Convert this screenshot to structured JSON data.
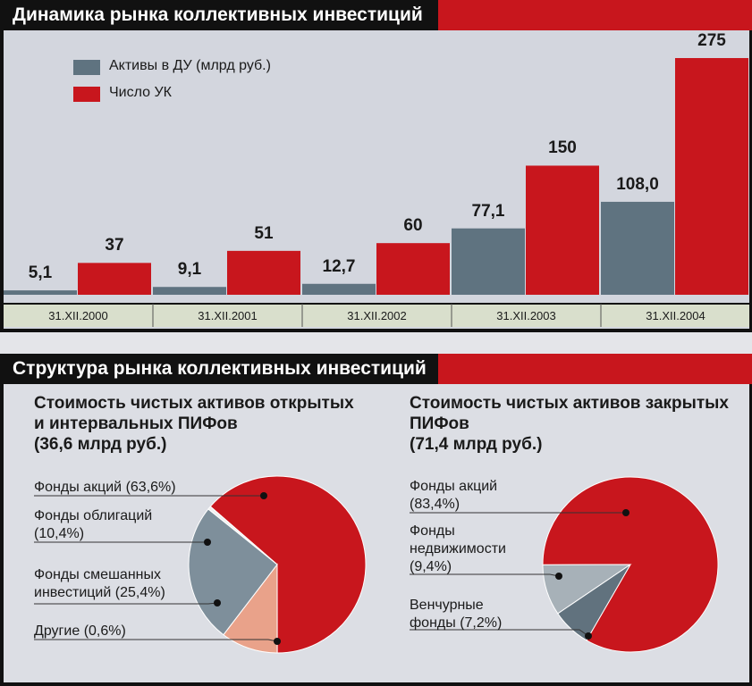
{
  "chart_data": [
    {
      "type": "bar",
      "title": "Динамика рынка коллективных инвестиций",
      "categories": [
        "31.XII.2000",
        "31.XII.2001",
        "31.XII.2002",
        "31.XII.2003",
        "31.XII.2004"
      ],
      "series": [
        {
          "name": "Активы в ДУ (млрд руб.)",
          "color": "#5f7380",
          "values": [
            5.1,
            9.1,
            12.7,
            77.1,
            108.0
          ],
          "value_labels": [
            "5,1",
            "9,1",
            "12,7",
            "77,1",
            "108,0"
          ]
        },
        {
          "name": "Число УК",
          "color": "#c8161d",
          "values": [
            37,
            51,
            60,
            150,
            275
          ]
        }
      ]
    },
    {
      "type": "pie",
      "section_title": "Структура рынка коллективных инвестиций",
      "title": "Стоимость чистых активов открытых и интервальных ПИФов",
      "subtitle": "(36,6 млрд руб.)",
      "categories": [
        "Фонды акций",
        "Фонды облигаций",
        "Фонды смешанных инвестиций",
        "Другие"
      ],
      "values": [
        63.6,
        10.4,
        25.4,
        0.6
      ],
      "value_labels": [
        "(63,6%)",
        "(10,4%)",
        "(25,4%)",
        "(0,6%)"
      ],
      "colors": [
        "#c8161d",
        "#e9a28a",
        "#7e8f9b",
        "#f0f0f0"
      ]
    },
    {
      "type": "pie",
      "title": "Стоимость чистых активов закрытых ПИФов",
      "subtitle": "(71,4 млрд руб.)",
      "categories": [
        "Фонды акций",
        "Фонды недвижимости",
        "Венчурные фонды"
      ],
      "values": [
        83.4,
        9.4,
        7.2
      ],
      "value_labels": [
        "(83,4%)",
        "(9,4%)",
        "(7,2%)"
      ],
      "colors": [
        "#c8161d",
        "#a7b1b8",
        "#61727e"
      ]
    }
  ]
}
